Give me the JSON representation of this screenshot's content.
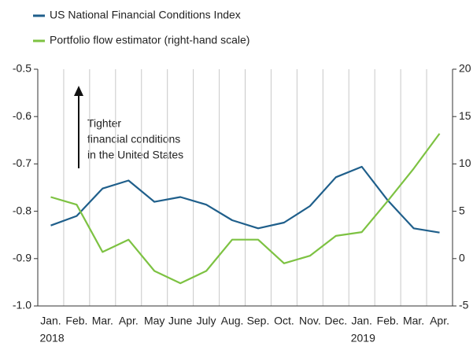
{
  "chart_data": {
    "type": "line",
    "categories": [
      "Jan.",
      "Feb.",
      "Mar.",
      "Apr.",
      "May",
      "June",
      "July",
      "Aug.",
      "Sep.",
      "Oct.",
      "Nov.",
      "Dec.",
      "Jan.",
      "Feb.",
      "Mar.",
      "Apr."
    ],
    "year_labels": [
      "2018",
      null,
      null,
      null,
      null,
      null,
      null,
      null,
      null,
      null,
      null,
      null,
      "2019",
      null,
      null,
      null
    ],
    "series": [
      {
        "name": "US National Financial Conditions Index",
        "color": "#1f5f8b",
        "values": [
          -0.83,
          -0.81,
          -0.752,
          -0.735,
          -0.78,
          -0.77,
          -0.786,
          -0.819,
          -0.836,
          -0.824,
          -0.789,
          -0.728,
          -0.706,
          -0.777,
          -0.836,
          -0.845
        ]
      },
      {
        "name": "Portfolio flow estimator (right-hand scale)",
        "color": "#7dc242",
        "axis": "y2",
        "values": [
          6.5,
          5.7,
          0.7,
          2,
          -1.3,
          -2.6,
          -1.3,
          2,
          2,
          -0.5,
          0.3,
          2.4,
          2.8,
          6.1,
          9.5,
          13.2
        ]
      }
    ],
    "ylim": [
      -1,
      -0.5
    ],
    "yticks": [
      {
        "value": -1,
        "label": "-1.0"
      },
      -0.9,
      -0.8,
      -0.7,
      -0.6,
      -0.5
    ],
    "y2lim": [
      -5,
      20
    ],
    "y2ticks": [
      -5,
      0,
      5,
      10,
      15,
      20
    ],
    "annotation": [
      "Tighter",
      "financial conditions",
      "in the United States"
    ]
  }
}
